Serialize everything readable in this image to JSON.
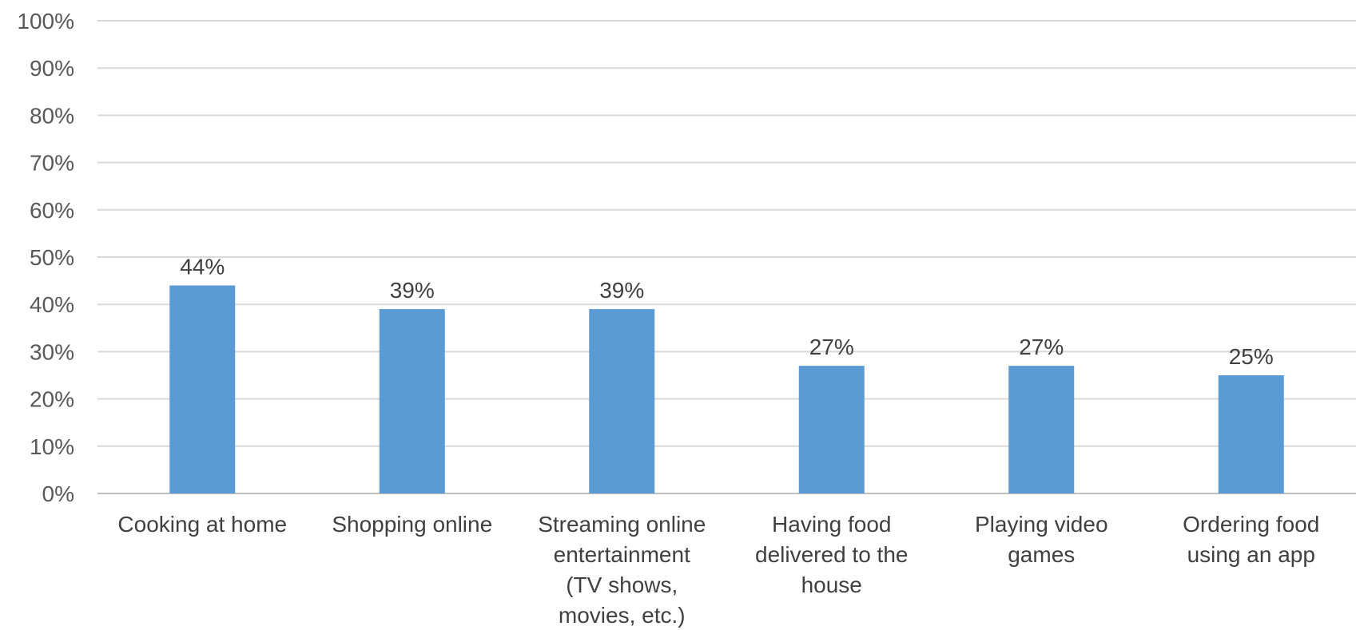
{
  "chart_data": {
    "type": "bar",
    "categories": [
      [
        "Cooking at home"
      ],
      [
        "Shopping online"
      ],
      [
        "Streaming online",
        "entertainment",
        "(TV shows,",
        "movies, etc.)"
      ],
      [
        "Having food",
        "delivered to the",
        "house"
      ],
      [
        "Playing video",
        "games"
      ],
      [
        "Ordering food",
        "using an app"
      ]
    ],
    "values": [
      44,
      39,
      39,
      27,
      27,
      25
    ],
    "value_labels": [
      "44%",
      "39%",
      "39%",
      "27%",
      "27%",
      "25%"
    ],
    "y_ticks": [
      "0%",
      "10%",
      "20%",
      "30%",
      "40%",
      "50%",
      "60%",
      "70%",
      "80%",
      "90%",
      "100%"
    ],
    "ylim": [
      0,
      100
    ],
    "grid": true,
    "legend": "none",
    "bar_color": "#5b9bd5",
    "grid_color": "#d9d9d9",
    "title": "",
    "xlabel": "",
    "ylabel": ""
  }
}
